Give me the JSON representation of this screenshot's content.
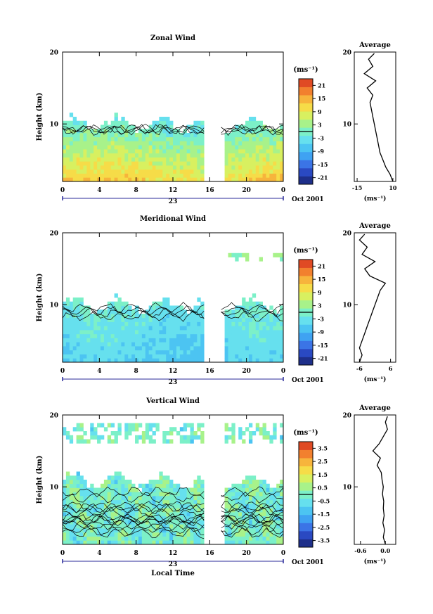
{
  "chart_data": [
    {
      "type": "heatmap",
      "title": "Zonal Wind",
      "ylabel": "Height (km)",
      "xlim": [
        0,
        24
      ],
      "ylim": [
        2,
        20
      ],
      "x_ticks": [
        "0",
        "4",
        "8",
        "12",
        "16",
        "20",
        "0"
      ],
      "y_ticks": [
        "10",
        "20"
      ],
      "date_label": "23",
      "date_suffix": "Oct 2001",
      "data_gap_hours": [
        15.4,
        17.5
      ],
      "colorbar": {
        "unit": "(ms⁻¹)",
        "ticks": [
          "21",
          "15",
          "9",
          "3",
          "-3",
          "-9",
          "-15",
          "-21"
        ],
        "range": [
          -24,
          24
        ]
      },
      "profile": {
        "title": "Average",
        "xlabel": "(ms⁻¹)",
        "x_ticks": [
          "-15",
          "10"
        ],
        "xlim": [
          -17,
          12
        ],
        "y_ticks": [
          "10",
          "20"
        ],
        "values": [
          [
            10,
            2
          ],
          [
            8,
            3
          ],
          [
            5,
            4
          ],
          [
            3,
            5
          ],
          [
            1,
            6
          ],
          [
            0,
            7
          ],
          [
            -1,
            8
          ],
          [
            -2,
            9
          ],
          [
            -3,
            10
          ],
          [
            -4,
            11
          ],
          [
            -5,
            12
          ],
          [
            -6,
            13
          ],
          [
            -4,
            14
          ],
          [
            -8,
            15
          ],
          [
            -2,
            16
          ],
          [
            -10,
            17
          ],
          [
            -4,
            18
          ],
          [
            -7,
            19
          ],
          [
            -3,
            19.8
          ]
        ]
      }
    },
    {
      "type": "heatmap",
      "title": "Meridional Wind",
      "ylabel": "Height (km)",
      "xlim": [
        0,
        24
      ],
      "ylim": [
        2,
        20
      ],
      "x_ticks": [
        "0",
        "4",
        "8",
        "12",
        "16",
        "20",
        "0"
      ],
      "y_ticks": [
        "10",
        "20"
      ],
      "date_label": "23",
      "date_suffix": "Oct 2001",
      "data_gap_hours": [
        15.4,
        17.5
      ],
      "colorbar": {
        "unit": "(ms⁻¹)",
        "ticks": [
          "21",
          "15",
          "9",
          "3",
          "-3",
          "-9",
          "-15",
          "-21"
        ],
        "range": [
          -24,
          24
        ]
      },
      "profile": {
        "title": "Average",
        "xlabel": "(ms⁻¹)",
        "x_ticks": [
          "-6",
          "6"
        ],
        "xlim": [
          -8,
          8
        ],
        "y_ticks": [
          "10",
          "20"
        ],
        "values": [
          [
            -6,
            2
          ],
          [
            -5,
            3
          ],
          [
            -6,
            4
          ],
          [
            -5,
            5
          ],
          [
            -4,
            6
          ],
          [
            -3,
            7
          ],
          [
            -2,
            8
          ],
          [
            -1,
            9
          ],
          [
            0,
            10
          ],
          [
            1,
            11
          ],
          [
            2,
            12
          ],
          [
            4,
            13
          ],
          [
            -2,
            14
          ],
          [
            -4,
            15
          ],
          [
            0,
            16
          ],
          [
            -5,
            17
          ],
          [
            -3,
            18
          ],
          [
            -6,
            19
          ],
          [
            -4,
            19.8
          ]
        ]
      }
    },
    {
      "type": "heatmap",
      "title": "Vertical Wind",
      "ylabel": "Height (km)",
      "xlabel": "Local Time",
      "xlim": [
        0,
        24
      ],
      "ylim": [
        2,
        20
      ],
      "x_ticks": [
        "0",
        "4",
        "8",
        "12",
        "16",
        "20",
        "0"
      ],
      "y_ticks": [
        "10",
        "20"
      ],
      "date_label": "23",
      "date_suffix": "Oct 2001",
      "data_gap_hours": [
        15.4,
        17.5
      ],
      "colorbar": {
        "unit": "(ms⁻¹)",
        "ticks": [
          "3.5",
          "2.5",
          "1.5",
          "0.5",
          "-0.5",
          "-1.5",
          "-2.5",
          "-3.5"
        ],
        "range": [
          -4,
          4
        ]
      },
      "profile": {
        "title": "Average",
        "xlabel": "(ms⁻¹)",
        "x_ticks": [
          "-0.6",
          "0.0"
        ],
        "xlim": [
          -0.75,
          0.25
        ],
        "y_ticks": [
          "10",
          "20"
        ],
        "values": [
          [
            0.0,
            2
          ],
          [
            -0.05,
            3
          ],
          [
            -0.02,
            4
          ],
          [
            -0.06,
            5
          ],
          [
            -0.03,
            6
          ],
          [
            -0.05,
            7
          ],
          [
            -0.04,
            8
          ],
          [
            -0.07,
            9
          ],
          [
            -0.05,
            10
          ],
          [
            -0.08,
            11
          ],
          [
            -0.1,
            12
          ],
          [
            -0.2,
            13
          ],
          [
            -0.12,
            14
          ],
          [
            -0.3,
            15
          ],
          [
            -0.15,
            16
          ],
          [
            -0.05,
            17
          ],
          [
            0.05,
            18
          ],
          [
            0.0,
            19
          ],
          [
            0.05,
            19.8
          ]
        ]
      }
    }
  ]
}
